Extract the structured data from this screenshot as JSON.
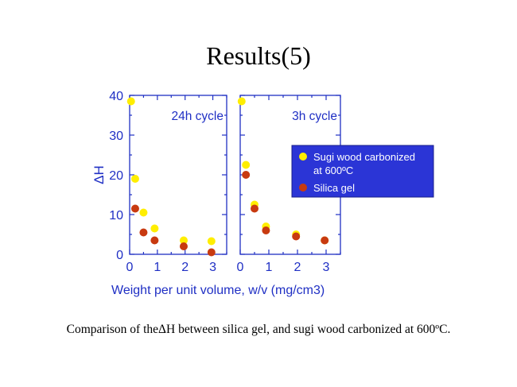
{
  "slide": {
    "title": "Results(5)",
    "caption": "Comparison of theΔH between silica gel, and sugi wood carbonized at 600ºC."
  },
  "colors": {
    "axis": "#1f2fc4",
    "legend_bg": "#2b35d6",
    "legend_text": "#ffffff",
    "sugi_wood": "#ffee00",
    "silica_gel": "#c83a10"
  },
  "chart_data": [
    {
      "type": "scatter",
      "title": "24h cycle",
      "ylabel": "ΔH",
      "xlabel": "Weight per unit volume, w/v (mg/cm3)",
      "xlim": [
        0,
        3.5
      ],
      "ylim": [
        0,
        40
      ],
      "xticks": [
        "0",
        "1",
        "2",
        "3"
      ],
      "yticks": [
        "0",
        "10",
        "20",
        "30",
        "40"
      ],
      "grid": false,
      "series": [
        {
          "name": "Sugi wood carbonized at 600ºC",
          "x": [
            0.05,
            0.2,
            0.5,
            0.9,
            1.95,
            2.95
          ],
          "y": [
            38.5,
            19,
            10.5,
            6.5,
            3.5,
            3.3
          ]
        },
        {
          "name": "Silica gel",
          "x": [
            0.2,
            0.5,
            0.9,
            1.95,
            2.95
          ],
          "y": [
            11.5,
            5.5,
            3.5,
            2,
            0.5
          ]
        }
      ]
    },
    {
      "type": "scatter",
      "title": "3h cycle",
      "xlim": [
        0,
        3.5
      ],
      "ylim": [
        0,
        40
      ],
      "xticks": [
        "0",
        "1",
        "2",
        "3"
      ],
      "grid": false,
      "legend": {
        "position": "right",
        "entries": [
          "Sugi wood carbonized at 600ºC",
          "Silica gel"
        ]
      },
      "series": [
        {
          "name": "Sugi wood carbonized at 600ºC",
          "x": [
            0.05,
            0.2,
            0.5,
            0.9,
            1.95,
            2.95
          ],
          "y": [
            38.5,
            22.5,
            12.5,
            7,
            5,
            3.5
          ]
        },
        {
          "name": "Silica gel",
          "x": [
            0.2,
            0.5,
            0.9,
            1.95,
            2.95
          ],
          "y": [
            20,
            11.5,
            6,
            4.5,
            3.5
          ]
        }
      ]
    }
  ]
}
